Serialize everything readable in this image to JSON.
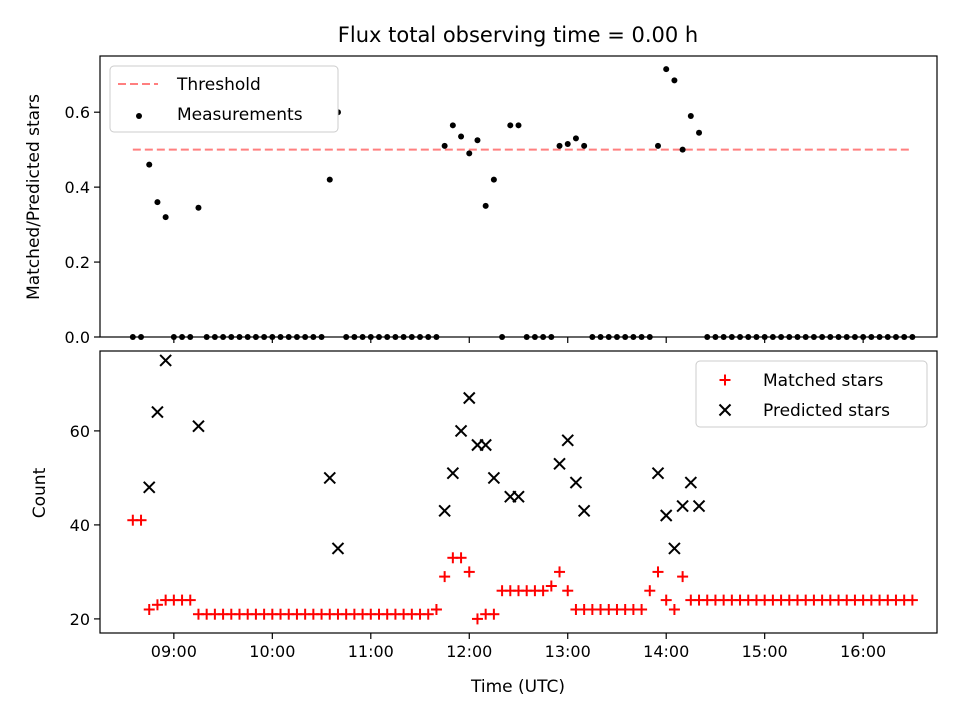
{
  "chart_data": [
    {
      "type": "scatter",
      "title": "Flux total observing time = 0.00 h",
      "xlabel": "",
      "ylabel": "Matched/Predicted stars",
      "xlim": [
        "08:15",
        "16:45"
      ],
      "ylim": [
        0,
        0.75
      ],
      "yticks": [
        0.0,
        0.2,
        0.4,
        0.6
      ],
      "ytick_labels": [
        "0.0",
        "0.2",
        "0.4",
        "0.6"
      ],
      "grid": false,
      "legend_position": "top-left",
      "threshold": {
        "name": "Threshold",
        "y": 0.5,
        "x_range": [
          "08:35",
          "16:30"
        ],
        "color": "#ff7f7f",
        "style": "dashed"
      },
      "series": [
        {
          "name": "Measurements",
          "marker": "dot",
          "color": "#000000",
          "points": [
            [
              "08:35",
              0
            ],
            [
              "08:40",
              0
            ],
            [
              "08:45",
              0.46
            ],
            [
              "08:50",
              0.36
            ],
            [
              "08:55",
              0.32
            ],
            [
              "09:00",
              0
            ],
            [
              "09:05",
              0
            ],
            [
              "09:10",
              0
            ],
            [
              "09:15",
              0.345
            ],
            [
              "09:20",
              0
            ],
            [
              "09:25",
              0
            ],
            [
              "09:30",
              0
            ],
            [
              "09:35",
              0
            ],
            [
              "09:40",
              0
            ],
            [
              "09:45",
              0
            ],
            [
              "09:50",
              0
            ],
            [
              "09:55",
              0
            ],
            [
              "10:00",
              0
            ],
            [
              "10:05",
              0
            ],
            [
              "10:10",
              0
            ],
            [
              "10:15",
              0
            ],
            [
              "10:20",
              0
            ],
            [
              "10:25",
              0
            ],
            [
              "10:30",
              0
            ],
            [
              "10:35",
              0.42
            ],
            [
              "10:40",
              0.6
            ],
            [
              "10:45",
              0
            ],
            [
              "10:50",
              0
            ],
            [
              "10:55",
              0
            ],
            [
              "11:00",
              0
            ],
            [
              "11:05",
              0
            ],
            [
              "11:10",
              0
            ],
            [
              "11:15",
              0
            ],
            [
              "11:20",
              0
            ],
            [
              "11:25",
              0
            ],
            [
              "11:30",
              0
            ],
            [
              "11:35",
              0
            ],
            [
              "11:40",
              0
            ],
            [
              "11:45",
              0.51
            ],
            [
              "11:50",
              0.565
            ],
            [
              "11:55",
              0.535
            ],
            [
              "12:00",
              0.49
            ],
            [
              "12:05",
              0.525
            ],
            [
              "12:10",
              0.35
            ],
            [
              "12:15",
              0.42
            ],
            [
              "12:20",
              0
            ],
            [
              "12:25",
              0.565
            ],
            [
              "12:30",
              0.565
            ],
            [
              "12:35",
              0
            ],
            [
              "12:40",
              0
            ],
            [
              "12:45",
              0
            ],
            [
              "12:50",
              0
            ],
            [
              "12:55",
              0.51
            ],
            [
              "13:00",
              0.515
            ],
            [
              "13:05",
              0.53
            ],
            [
              "13:10",
              0.51
            ],
            [
              "13:15",
              0
            ],
            [
              "13:20",
              0
            ],
            [
              "13:25",
              0
            ],
            [
              "13:30",
              0
            ],
            [
              "13:35",
              0
            ],
            [
              "13:40",
              0
            ],
            [
              "13:45",
              0
            ],
            [
              "13:50",
              0
            ],
            [
              "13:55",
              0.51
            ],
            [
              "14:00",
              0.715
            ],
            [
              "14:05",
              0.685
            ],
            [
              "14:10",
              0.5
            ],
            [
              "14:15",
              0.59
            ],
            [
              "14:20",
              0.545
            ],
            [
              "14:25",
              0
            ],
            [
              "14:30",
              0
            ],
            [
              "14:35",
              0
            ],
            [
              "14:40",
              0
            ],
            [
              "14:45",
              0
            ],
            [
              "14:50",
              0
            ],
            [
              "14:55",
              0
            ],
            [
              "15:00",
              0
            ],
            [
              "15:05",
              0
            ],
            [
              "15:10",
              0
            ],
            [
              "15:15",
              0
            ],
            [
              "15:20",
              0
            ],
            [
              "15:25",
              0
            ],
            [
              "15:30",
              0
            ],
            [
              "15:35",
              0
            ],
            [
              "15:40",
              0
            ],
            [
              "15:45",
              0
            ],
            [
              "15:50",
              0
            ],
            [
              "15:55",
              0
            ],
            [
              "16:00",
              0
            ],
            [
              "16:05",
              0
            ],
            [
              "16:10",
              0
            ],
            [
              "16:15",
              0
            ],
            [
              "16:20",
              0
            ],
            [
              "16:25",
              0
            ],
            [
              "16:30",
              0
            ]
          ]
        }
      ]
    },
    {
      "type": "scatter",
      "title": "",
      "xlabel": "Time (UTC)",
      "ylabel": "Count",
      "xlim": [
        "08:15",
        "16:45"
      ],
      "ylim": [
        17,
        77
      ],
      "yticks": [
        20,
        40,
        60
      ],
      "ytick_labels": [
        "20",
        "40",
        "60"
      ],
      "xticks": [
        "09:00",
        "10:00",
        "11:00",
        "12:00",
        "13:00",
        "14:00",
        "15:00",
        "16:00"
      ],
      "xtick_labels": [
        "09:00",
        "10:00",
        "11:00",
        "12:00",
        "13:00",
        "14:00",
        "15:00",
        "16:00"
      ],
      "grid": false,
      "legend_position": "top-right",
      "series": [
        {
          "name": "Matched stars",
          "marker": "plus",
          "color": "#ff0000",
          "points": [
            [
              "08:35",
              41
            ],
            [
              "08:40",
              41
            ],
            [
              "08:45",
              22
            ],
            [
              "08:50",
              23
            ],
            [
              "08:55",
              24
            ],
            [
              "09:00",
              24
            ],
            [
              "09:05",
              24
            ],
            [
              "09:10",
              24
            ],
            [
              "09:15",
              21
            ],
            [
              "09:20",
              21
            ],
            [
              "09:25",
              21
            ],
            [
              "09:30",
              21
            ],
            [
              "09:35",
              21
            ],
            [
              "09:40",
              21
            ],
            [
              "09:45",
              21
            ],
            [
              "09:50",
              21
            ],
            [
              "09:55",
              21
            ],
            [
              "10:00",
              21
            ],
            [
              "10:05",
              21
            ],
            [
              "10:10",
              21
            ],
            [
              "10:15",
              21
            ],
            [
              "10:20",
              21
            ],
            [
              "10:25",
              21
            ],
            [
              "10:30",
              21
            ],
            [
              "10:35",
              21
            ],
            [
              "10:40",
              21
            ],
            [
              "10:45",
              21
            ],
            [
              "10:50",
              21
            ],
            [
              "10:55",
              21
            ],
            [
              "11:00",
              21
            ],
            [
              "11:05",
              21
            ],
            [
              "11:10",
              21
            ],
            [
              "11:15",
              21
            ],
            [
              "11:20",
              21
            ],
            [
              "11:25",
              21
            ],
            [
              "11:30",
              21
            ],
            [
              "11:35",
              21
            ],
            [
              "11:40",
              22
            ],
            [
              "11:45",
              29
            ],
            [
              "11:50",
              33
            ],
            [
              "11:55",
              33
            ],
            [
              "12:00",
              30
            ],
            [
              "12:05",
              20
            ],
            [
              "12:10",
              21
            ],
            [
              "12:15",
              21
            ],
            [
              "12:20",
              26
            ],
            [
              "12:25",
              26
            ],
            [
              "12:30",
              26
            ],
            [
              "12:35",
              26
            ],
            [
              "12:40",
              26
            ],
            [
              "12:45",
              26
            ],
            [
              "12:50",
              27
            ],
            [
              "12:55",
              30
            ],
            [
              "13:00",
              26
            ],
            [
              "13:05",
              22
            ],
            [
              "13:10",
              22
            ],
            [
              "13:15",
              22
            ],
            [
              "13:20",
              22
            ],
            [
              "13:25",
              22
            ],
            [
              "13:30",
              22
            ],
            [
              "13:35",
              22
            ],
            [
              "13:40",
              22
            ],
            [
              "13:45",
              22
            ],
            [
              "13:50",
              26
            ],
            [
              "13:55",
              30
            ],
            [
              "14:00",
              24
            ],
            [
              "14:05",
              22
            ],
            [
              "14:10",
              29
            ],
            [
              "14:15",
              24
            ],
            [
              "14:20",
              24
            ],
            [
              "14:25",
              24
            ],
            [
              "14:30",
              24
            ],
            [
              "14:35",
              24
            ],
            [
              "14:40",
              24
            ],
            [
              "14:45",
              24
            ],
            [
              "14:50",
              24
            ],
            [
              "14:55",
              24
            ],
            [
              "15:00",
              24
            ],
            [
              "15:05",
              24
            ],
            [
              "15:10",
              24
            ],
            [
              "15:15",
              24
            ],
            [
              "15:20",
              24
            ],
            [
              "15:25",
              24
            ],
            [
              "15:30",
              24
            ],
            [
              "15:35",
              24
            ],
            [
              "15:40",
              24
            ],
            [
              "15:45",
              24
            ],
            [
              "15:50",
              24
            ],
            [
              "15:55",
              24
            ],
            [
              "16:00",
              24
            ],
            [
              "16:05",
              24
            ],
            [
              "16:10",
              24
            ],
            [
              "16:15",
              24
            ],
            [
              "16:20",
              24
            ],
            [
              "16:25",
              24
            ],
            [
              "16:30",
              24
            ]
          ]
        },
        {
          "name": "Predicted stars",
          "marker": "x",
          "color": "#000000",
          "points": [
            [
              "08:45",
              48
            ],
            [
              "08:50",
              64
            ],
            [
              "08:55",
              75
            ],
            [
              "09:15",
              61
            ],
            [
              "10:35",
              50
            ],
            [
              "10:40",
              35
            ],
            [
              "11:45",
              43
            ],
            [
              "11:50",
              51
            ],
            [
              "11:55",
              60
            ],
            [
              "12:00",
              67
            ],
            [
              "12:05",
              57
            ],
            [
              "12:10",
              57
            ],
            [
              "12:15",
              50
            ],
            [
              "12:25",
              46
            ],
            [
              "12:30",
              46
            ],
            [
              "12:55",
              53
            ],
            [
              "13:00",
              58
            ],
            [
              "13:05",
              49
            ],
            [
              "13:10",
              43
            ],
            [
              "13:55",
              51
            ],
            [
              "14:00",
              42
            ],
            [
              "14:05",
              35
            ],
            [
              "14:10",
              44
            ],
            [
              "14:15",
              49
            ],
            [
              "14:20",
              44
            ]
          ]
        }
      ]
    }
  ]
}
